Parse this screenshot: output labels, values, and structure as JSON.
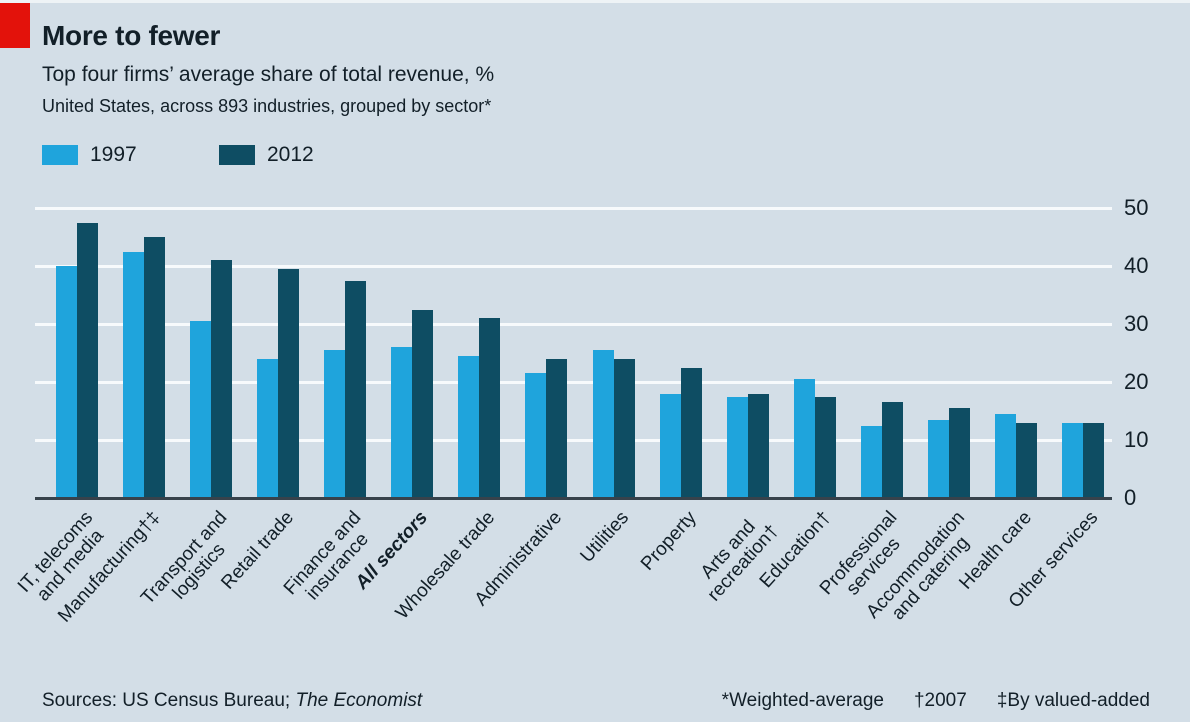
{
  "header": {
    "title": "More to fewer",
    "subtitle": "Top four firms’ average share of total revenue, %",
    "note": "United States, across 893 industries, grouped by sector*"
  },
  "legend": [
    {
      "label": "1997",
      "color": "#1fa4dc"
    },
    {
      "label": "2012",
      "color": "#0e4d63"
    }
  ],
  "chart_data": {
    "type": "bar",
    "title": "More to fewer",
    "subtitle": "Top four firms’ average share of total revenue, %",
    "note": "United States, across 893 industries, grouped by sector*",
    "grid": true,
    "legend_position": "top-left",
    "ylim": [
      0,
      50
    ],
    "yticks": [
      0,
      10,
      20,
      30,
      40,
      50
    ],
    "ylabel": "",
    "xlabel": "",
    "emphasized_category": "All sectors",
    "categories": [
      "IT, telecoms\nand media",
      "Manufacturing†‡",
      "Transport and\nlogistics",
      "Retail trade",
      "Finance and\ninsurance",
      "All sectors",
      "Wholesale trade",
      "Administrative",
      "Utilities",
      "Property",
      "Arts and\nrecreation†",
      "Education†",
      "Professional\nservices",
      "Accommodation\nand catering",
      "Health care",
      "Other services"
    ],
    "series": [
      {
        "name": "1997",
        "color": "#1fa4dc",
        "values": [
          40,
          42.5,
          30.5,
          24,
          25.5,
          26,
          24.5,
          21.5,
          25.5,
          18,
          17.5,
          20.5,
          12.5,
          13.5,
          14.5,
          13
        ]
      },
      {
        "name": "2012",
        "color": "#0e4d63",
        "values": [
          47.5,
          45,
          41,
          39.5,
          37.5,
          32.5,
          31,
          24,
          24,
          22.5,
          18,
          17.5,
          16.5,
          15.5,
          13,
          13
        ]
      }
    ]
  },
  "footer": {
    "sources_prefix": "Sources: US Census Bureau; ",
    "sources_italic": "The Economist",
    "footnotes": [
      "*Weighted-average",
      "†2007",
      "‡By valued-added"
    ]
  },
  "colors": {
    "background": "#d3dee7",
    "brand_red": "#e3120b",
    "text": "#121f28",
    "gridline": "#f7fafc",
    "axis": "#37424b"
  }
}
